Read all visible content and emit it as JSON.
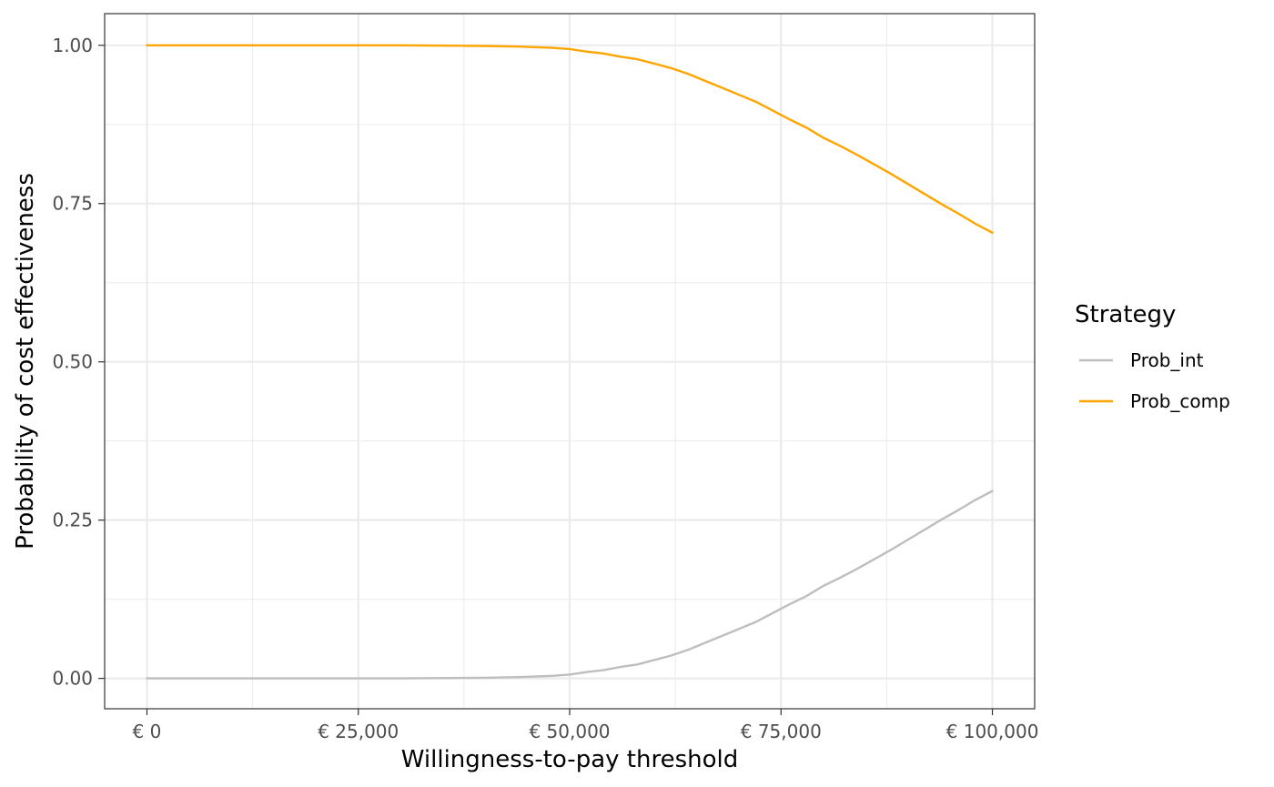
{
  "chart_data": {
    "type": "line",
    "title": "",
    "xlabel": "Willingness-to-pay threshold",
    "ylabel": "Probability of cost effectiveness",
    "xlim": [
      -5000,
      105000
    ],
    "ylim": [
      -0.048,
      1.05
    ],
    "x_ticks": [
      0,
      25000,
      50000,
      75000,
      100000
    ],
    "x_tick_labels": [
      "€ 0",
      "€ 25,000",
      "€ 50,000",
      "€ 75,000",
      "€ 100,000"
    ],
    "y_ticks": [
      0,
      0.25,
      0.5,
      0.75,
      1.0
    ],
    "y_tick_labels": [
      "0.00",
      "0.25",
      "0.50",
      "0.75",
      "1.00"
    ],
    "grid": true,
    "legend": {
      "title": "Strategy",
      "position": "right"
    },
    "series": [
      {
        "name": "Prob_int",
        "color": "#bebebe",
        "x": [
          0,
          10000,
          20000,
          30000,
          40000,
          44000,
          48000,
          50000,
          52000,
          54000,
          56000,
          58000,
          60000,
          62000,
          64000,
          66000,
          68000,
          70000,
          72000,
          74000,
          76000,
          78000,
          80000,
          82000,
          84000,
          86000,
          88000,
          90000,
          92000,
          94000,
          96000,
          98000,
          100000
        ],
        "y": [
          0,
          0,
          0,
          0,
          0.001,
          0.002,
          0.004,
          0.006,
          0.01,
          0.013,
          0.018,
          0.022,
          0.029,
          0.036,
          0.045,
          0.056,
          0.067,
          0.078,
          0.089,
          0.103,
          0.117,
          0.13,
          0.146,
          0.159,
          0.173,
          0.188,
          0.203,
          0.219,
          0.235,
          0.251,
          0.266,
          0.282,
          0.296
        ]
      },
      {
        "name": "Prob_comp",
        "color": "#ffa500",
        "x": [
          0,
          10000,
          20000,
          30000,
          40000,
          44000,
          48000,
          50000,
          52000,
          54000,
          56000,
          58000,
          60000,
          62000,
          64000,
          66000,
          68000,
          70000,
          72000,
          74000,
          76000,
          78000,
          80000,
          82000,
          84000,
          86000,
          88000,
          90000,
          92000,
          94000,
          96000,
          98000,
          100000
        ],
        "y": [
          1,
          1,
          1,
          1,
          0.999,
          0.998,
          0.996,
          0.994,
          0.99,
          0.987,
          0.982,
          0.978,
          0.971,
          0.964,
          0.955,
          0.944,
          0.933,
          0.922,
          0.911,
          0.897,
          0.883,
          0.87,
          0.854,
          0.841,
          0.827,
          0.812,
          0.797,
          0.781,
          0.765,
          0.749,
          0.734,
          0.718,
          0.704
        ]
      }
    ]
  }
}
